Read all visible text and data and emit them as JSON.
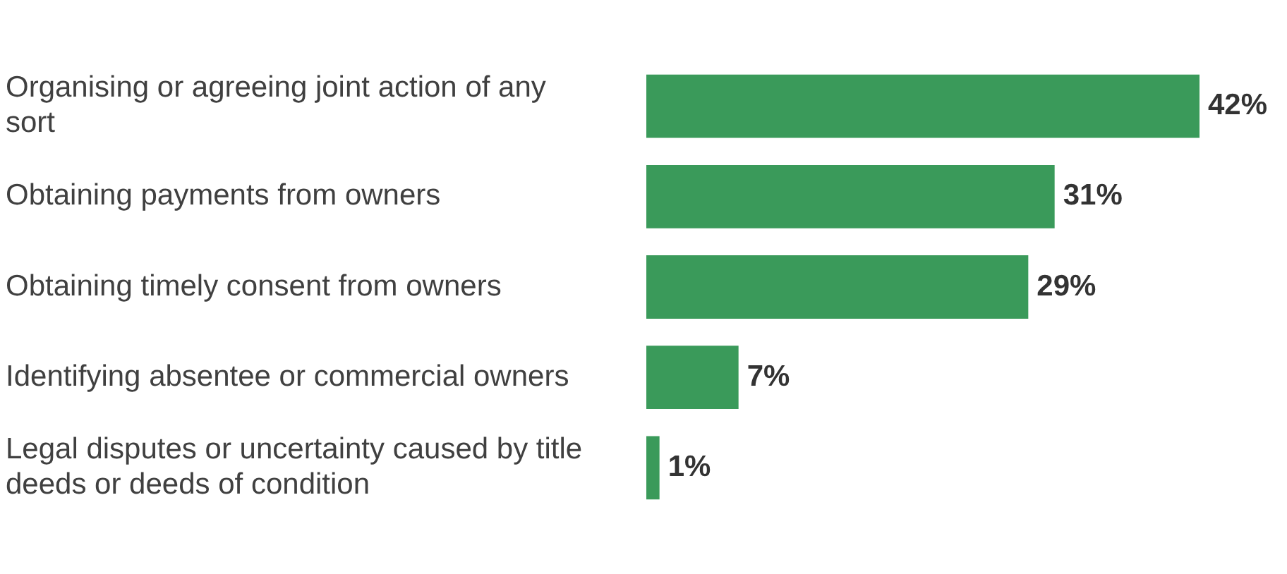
{
  "chart_data": {
    "type": "bar",
    "orientation": "horizontal",
    "categories": [
      "Organising or agreeing joint action of any sort",
      "Obtaining payments from owners",
      "Obtaining timely consent from owners",
      "Identifying absentee or commercial owners",
      "Legal disputes or uncertainty caused by title deeds or deeds of condition"
    ],
    "values": [
      42,
      31,
      29,
      7,
      1
    ],
    "value_labels": [
      "42%",
      "31%",
      "29%",
      "7%",
      "1%"
    ],
    "color": "#3a9a5a",
    "grid": false,
    "legend": false,
    "tick_labels": "y"
  }
}
